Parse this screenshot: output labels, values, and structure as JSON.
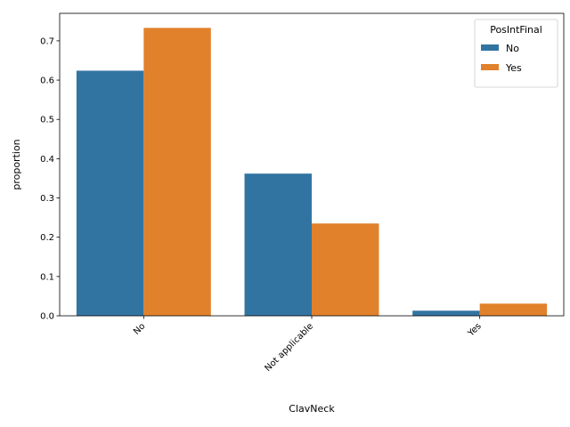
{
  "chart_data": {
    "type": "bar",
    "xlabel": "ClavNeck",
    "ylabel": "proportion",
    "categories": [
      "No",
      "Not applicable",
      "Yes"
    ],
    "ylim": [
      0,
      0.77
    ],
    "yticks": [
      0.0,
      0.1,
      0.2,
      0.3,
      0.4,
      0.5,
      0.6,
      0.7
    ],
    "ytick_labels": [
      "0.0",
      "0.1",
      "0.2",
      "0.3",
      "0.4",
      "0.5",
      "0.6",
      "0.7"
    ],
    "grid": false,
    "legend": {
      "title": "PosIntFinal",
      "placement": "top-right"
    },
    "series": [
      {
        "name": "No",
        "color": "#3274a1",
        "values": [
          0.624,
          0.362,
          0.013
        ]
      },
      {
        "name": "Yes",
        "color": "#e1812c",
        "values": [
          0.733,
          0.235,
          0.031
        ]
      }
    ]
  }
}
